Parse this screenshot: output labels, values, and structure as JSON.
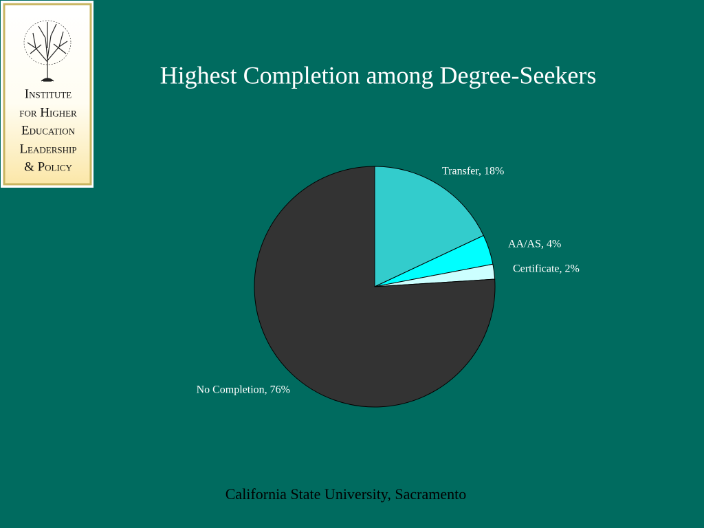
{
  "logo": {
    "lines": [
      "Institute",
      "for Higher",
      "Education",
      "Leadership",
      "& Policy"
    ]
  },
  "chart_data": {
    "type": "pie",
    "title": "Highest Completion among Degree-Seekers",
    "labels": [
      "Transfer, 18%",
      "AA/AS, 4%",
      "Certificate, 2%",
      "No Completion, 76%"
    ],
    "values": [
      18,
      4,
      2,
      76
    ],
    "colors": [
      "#33cccc",
      "#00ffff",
      "#ccffff",
      "#333333"
    ]
  },
  "footer": "California State University, Sacramento"
}
